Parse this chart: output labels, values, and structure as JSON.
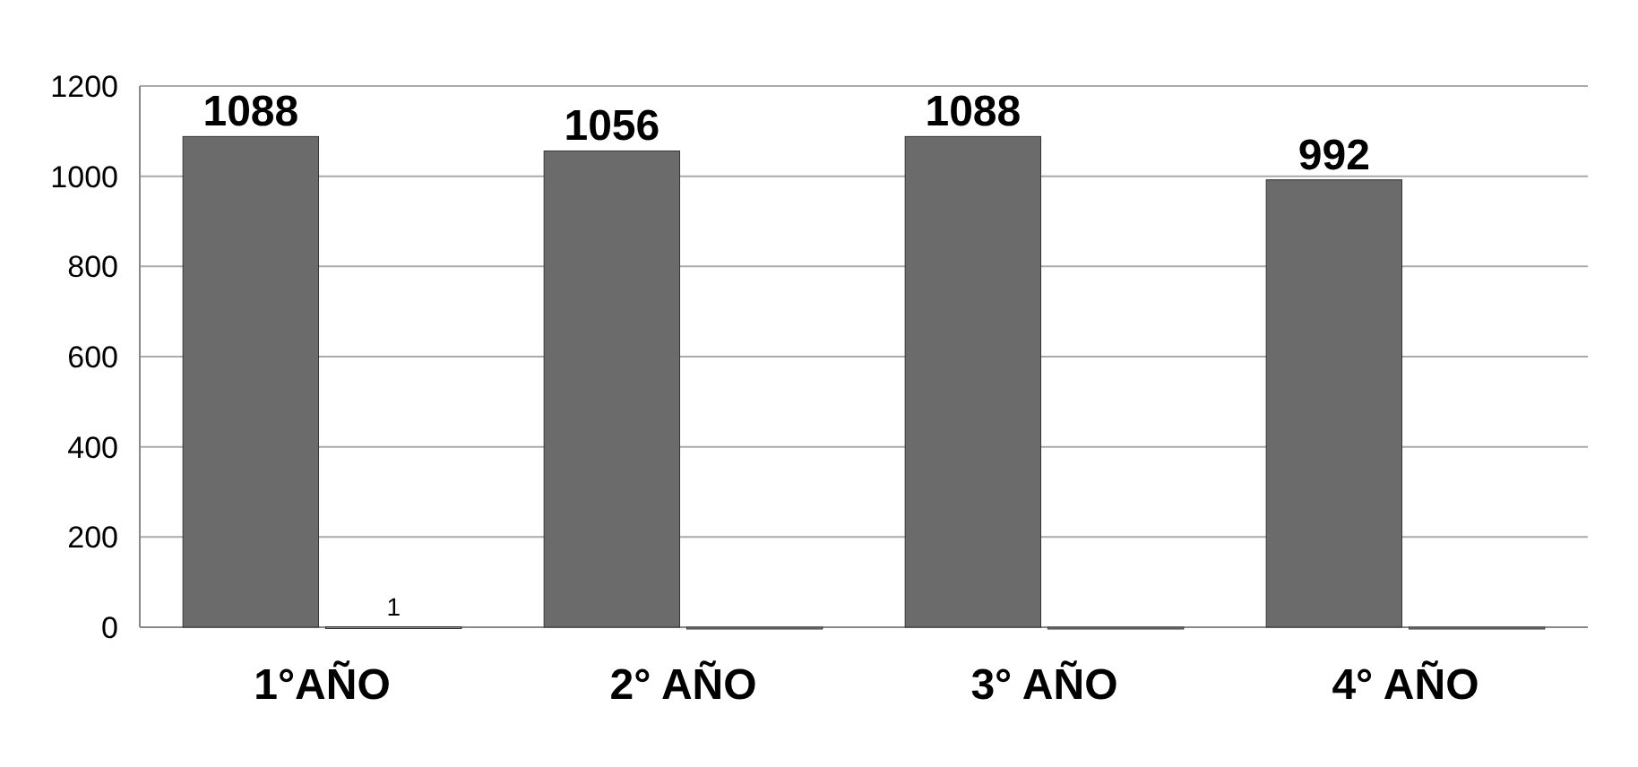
{
  "chart_data": {
    "type": "bar",
    "categories": [
      "1°AÑO",
      "2° AÑO",
      "3° AÑO",
      "4° AÑO"
    ],
    "series": [
      {
        "color": "#6b6b6b",
        "values": [
          1088,
          1056,
          1088,
          992
        ],
        "value_labels": [
          "1088",
          "1056",
          "1088",
          "992"
        ]
      },
      {
        "color": "#8c8c8c",
        "values": [
          1,
          0,
          0,
          0
        ],
        "value_labels": [
          "1",
          null,
          null,
          null
        ]
      }
    ],
    "ylim": [
      0,
      1200
    ],
    "yticks": [
      0,
      200,
      400,
      600,
      800,
      1000,
      1200
    ],
    "grid": "y"
  }
}
